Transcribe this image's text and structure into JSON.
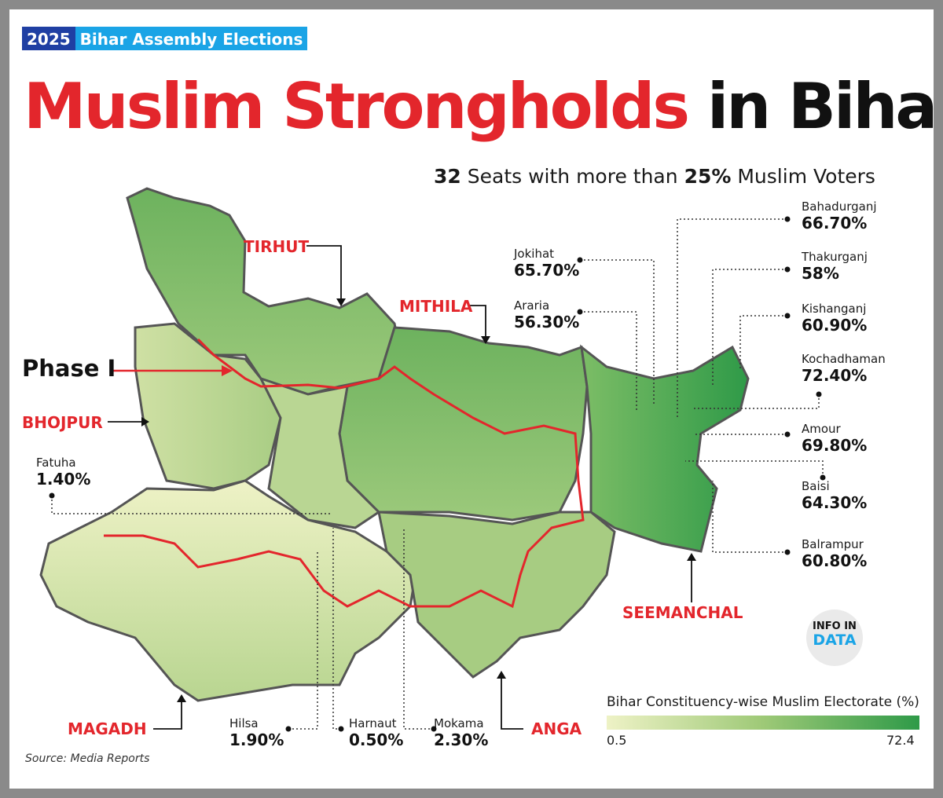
{
  "badge": {
    "year": "2025",
    "text": "Bihar Assembly Elections"
  },
  "title": {
    "red": "Muslim Strongholds",
    "black": "in Bihar"
  },
  "subtitle": {
    "count": "32",
    "pre": "Seats with more than",
    "pct": "25%",
    "post": "Muslim Voters"
  },
  "phase_label": "Phase I",
  "regions": {
    "tirhut": "TIRHUT",
    "mithila": "MITHILA",
    "bhojpur": "BHOJPUR",
    "magadh": "MAGADH",
    "anga": "ANGA",
    "seemanchal": "SEEMANCHAL"
  },
  "constituencies": {
    "bahadurganj": {
      "name": "Bahadurganj",
      "value": "66.70%"
    },
    "jokihat": {
      "name": "Jokihat",
      "value": "65.70%"
    },
    "thakurganj": {
      "name": "Thakurganj",
      "value": "58%"
    },
    "araria": {
      "name": "Araria",
      "value": "56.30%"
    },
    "kishanganj": {
      "name": "Kishanganj",
      "value": "60.90%"
    },
    "kochadhaman": {
      "name": "Kochadhaman",
      "value": "72.40%"
    },
    "amour": {
      "name": "Amour",
      "value": "69.80%"
    },
    "baisi": {
      "name": "Baisi",
      "value": "64.30%"
    },
    "balrampur": {
      "name": "Balrampur",
      "value": "60.80%"
    },
    "fatuha": {
      "name": "Fatuha",
      "value": "1.40%"
    },
    "hilsa": {
      "name": "Hilsa",
      "value": "1.90%"
    },
    "harnaut": {
      "name": "Harnaut",
      "value": "0.50%"
    },
    "mokama": {
      "name": "Mokama",
      "value": "2.30%"
    }
  },
  "legend": {
    "title": "Bihar Constituency-wise Muslim Electorate (%)",
    "min": "0.5",
    "max": "72.4",
    "color_min": "#eef2c6",
    "color_max": "#2e9a48"
  },
  "source": "Source: Media Reports",
  "logo": {
    "top": "INFO IN",
    "bottom": "DATA"
  },
  "colors": {
    "accent_red": "#e3262c",
    "badge_blue": "#1f3fa3",
    "badge_cyan": "#1aa4e6",
    "border_gray": "#555555"
  }
}
